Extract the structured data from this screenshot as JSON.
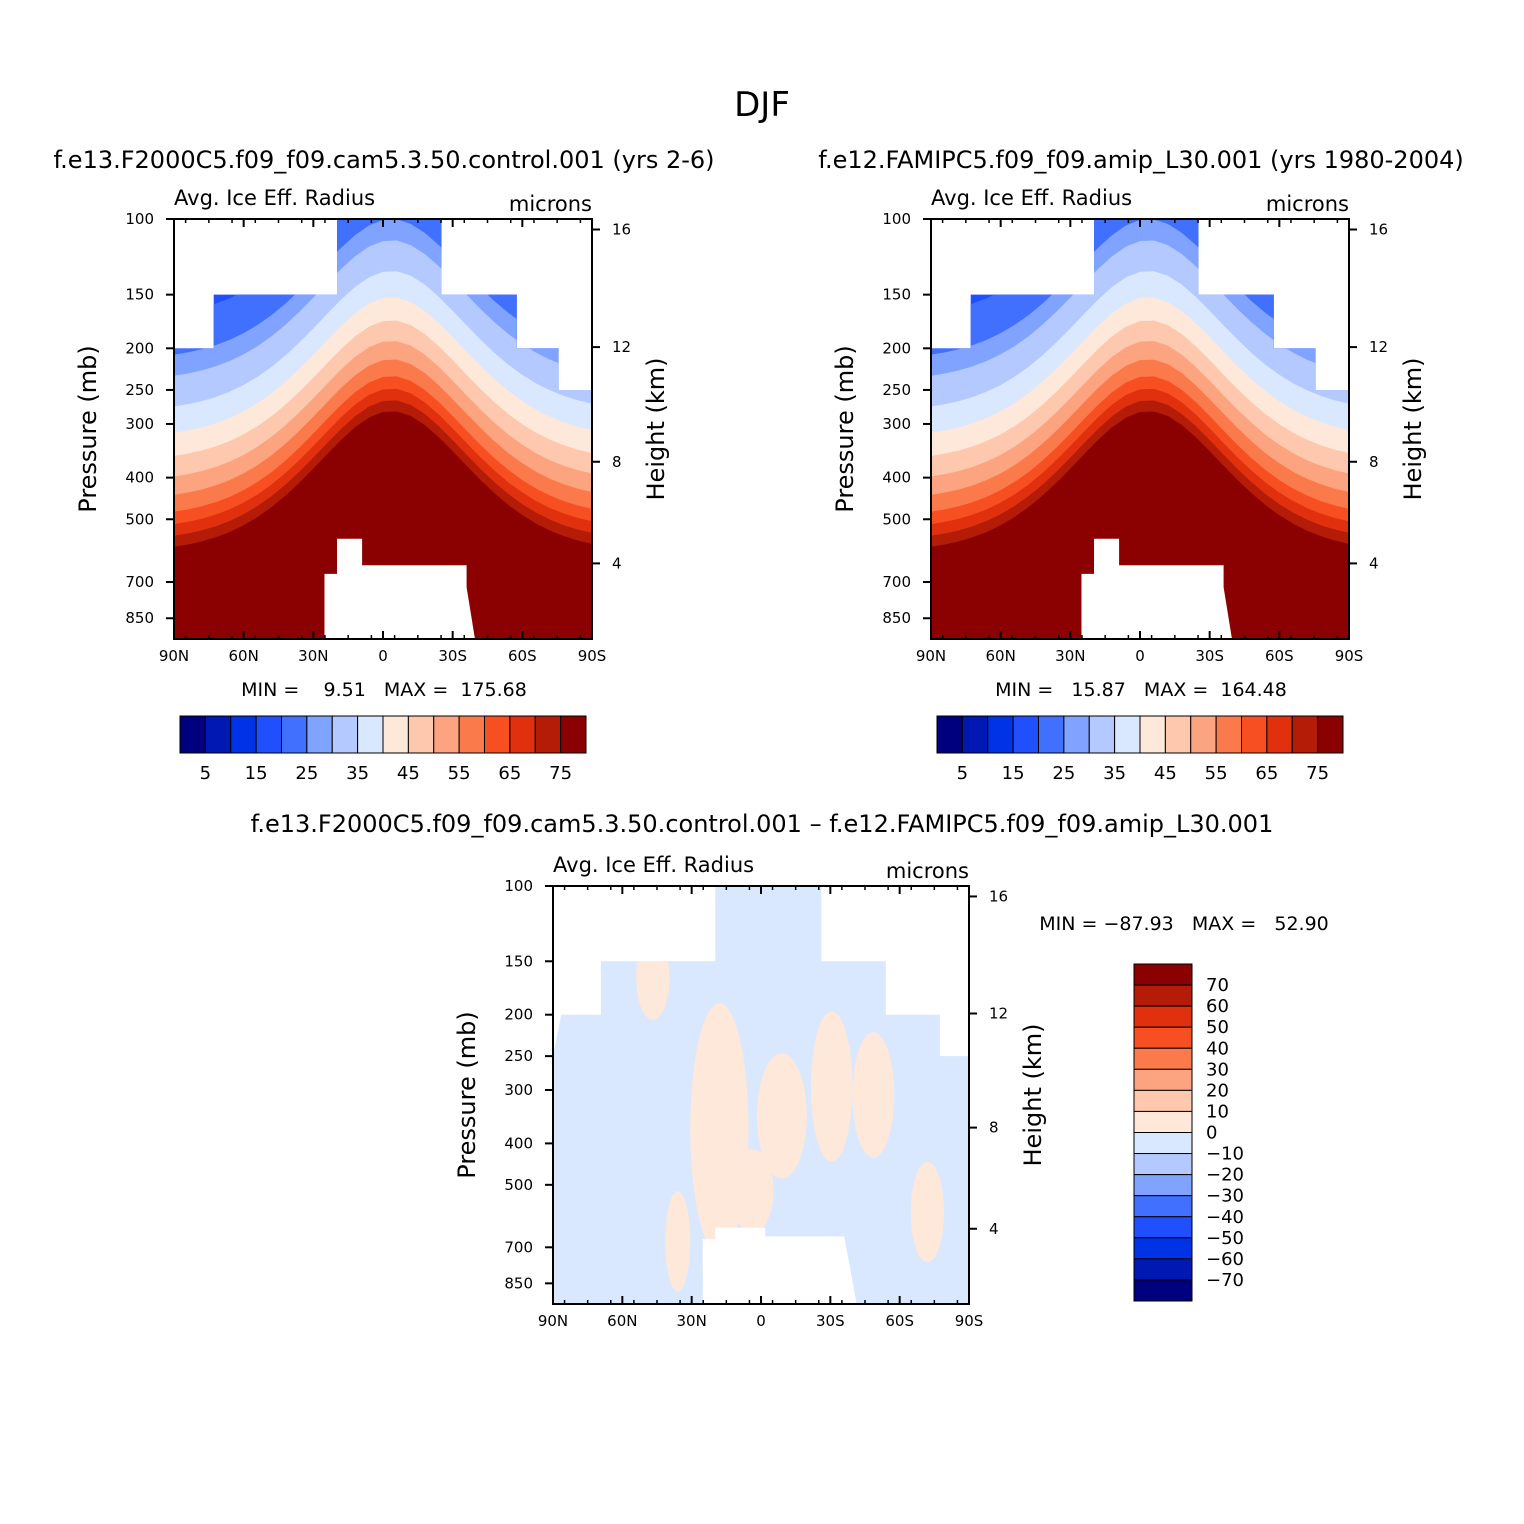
{
  "figure": {
    "title": "DJF"
  },
  "colors": {
    "abs_scale": [
      "#00007f",
      "#0019b2",
      "#0033e5",
      "#1f4fff",
      "#4170ff",
      "#7fa3ff",
      "#b3c9ff",
      "#d9e8ff",
      "#fde8da",
      "#fdc8ae",
      "#fca480",
      "#fb7a4c",
      "#f74f22",
      "#e0300d",
      "#b41c07",
      "#8b0000"
    ],
    "diff_scale": [
      "#00007f",
      "#0019b2",
      "#0033e5",
      "#1f4fff",
      "#4170ff",
      "#7fa3ff",
      "#b3c9ff",
      "#d9e8ff",
      "#fde8da",
      "#fdc8ae",
      "#fca480",
      "#fb7a4c",
      "#f74f22",
      "#e0300d",
      "#b41c07",
      "#8b0000"
    ]
  },
  "chart_data": [
    {
      "type": "heatmap",
      "id": "control",
      "title": "f.e13.F2000C5.f09_f09.cam5.3.50.control.001 (yrs 2-6)",
      "subtitle_left": "Avg. Ice Eff. Radius",
      "subtitle_right": "microns",
      "xlabel": "",
      "ylabel": "Pressure (mb)",
      "ylabel_right": "Height (km)",
      "x_ticks": [
        "90N",
        "60N",
        "30N",
        "0",
        "30S",
        "60S",
        "90S"
      ],
      "y_ticks": [
        "100",
        "150",
        "200",
        "250",
        "300",
        "400",
        "500",
        "700",
        "850"
      ],
      "y_right_ticks": [
        "16",
        "12",
        "8",
        "4"
      ],
      "ylim": [
        100,
        950
      ],
      "y_scale": "log",
      "stats_text": "MIN =    9.51   MAX =  175.68",
      "min": 9.51,
      "max": 175.68,
      "colorbar": {
        "orientation": "horizontal",
        "levels": [
          5,
          10,
          15,
          20,
          25,
          30,
          35,
          40,
          45,
          50,
          55,
          60,
          65,
          70,
          75
        ],
        "tick_labels": [
          "5",
          "15",
          "25",
          "35",
          "45",
          "55",
          "65",
          "75"
        ]
      }
    },
    {
      "type": "heatmap",
      "id": "amip",
      "title": "f.e12.FAMIPC5.f09_f09.amip_L30.001 (yrs 1980-2004)",
      "subtitle_left": "Avg. Ice Eff. Radius",
      "subtitle_right": "microns",
      "xlabel": "",
      "ylabel": "Pressure (mb)",
      "ylabel_right": "Height (km)",
      "x_ticks": [
        "90N",
        "60N",
        "30N",
        "0",
        "30S",
        "60S",
        "90S"
      ],
      "y_ticks": [
        "100",
        "150",
        "200",
        "250",
        "300",
        "400",
        "500",
        "700",
        "850"
      ],
      "y_right_ticks": [
        "16",
        "12",
        "8",
        "4"
      ],
      "ylim": [
        100,
        950
      ],
      "y_scale": "log",
      "stats_text": "MIN =   15.87   MAX =  164.48",
      "min": 15.87,
      "max": 164.48,
      "colorbar": {
        "orientation": "horizontal",
        "levels": [
          5,
          10,
          15,
          20,
          25,
          30,
          35,
          40,
          45,
          50,
          55,
          60,
          65,
          70,
          75
        ],
        "tick_labels": [
          "5",
          "15",
          "25",
          "35",
          "45",
          "55",
          "65",
          "75"
        ]
      }
    },
    {
      "type": "heatmap",
      "id": "difference",
      "title": "f.e13.F2000C5.f09_f09.cam5.3.50.control.001 – f.e12.FAMIPC5.f09_f09.amip_L30.001",
      "subtitle_left": "Avg. Ice Eff. Radius",
      "subtitle_right": "microns",
      "xlabel": "",
      "ylabel": "Pressure (mb)",
      "ylabel_right": "Height (km)",
      "x_ticks": [
        "90N",
        "60N",
        "30N",
        "0",
        "30S",
        "60S",
        "90S"
      ],
      "y_ticks": [
        "100",
        "150",
        "200",
        "250",
        "300",
        "400",
        "500",
        "700",
        "850"
      ],
      "y_right_ticks": [
        "16",
        "12",
        "8",
        "4"
      ],
      "ylim": [
        100,
        950
      ],
      "y_scale": "log",
      "stats_text": "MIN = −87.93   MAX =   52.90",
      "min": -87.93,
      "max": 52.9,
      "colorbar": {
        "orientation": "vertical",
        "levels": [
          -70,
          -60,
          -50,
          -40,
          -30,
          -20,
          -10,
          0,
          10,
          20,
          30,
          40,
          50,
          60,
          70
        ],
        "tick_labels": [
          "70",
          "60",
          "50",
          "40",
          "30",
          "20",
          "10",
          "0",
          "−10",
          "−20",
          "−30",
          "−40",
          "−50",
          "−60",
          "−70"
        ]
      }
    }
  ]
}
